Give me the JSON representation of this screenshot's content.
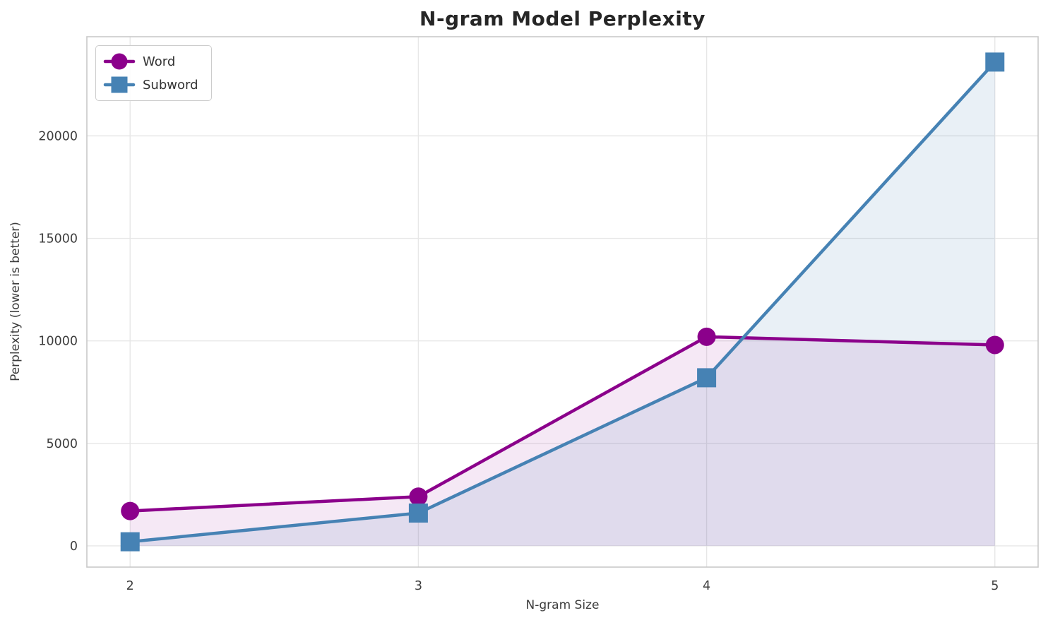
{
  "chart_data": {
    "type": "line",
    "title": "N-gram Model Perplexity",
    "xlabel": "N-gram Size",
    "ylabel": "Perplexity (lower is better)",
    "x": [
      2,
      3,
      4,
      5
    ],
    "series": [
      {
        "name": "Word",
        "marker": "circle",
        "color": "#8B008B",
        "fill_color": "rgba(139, 0, 139, 0.09)",
        "values": [
          1700,
          2400,
          10200,
          9800
        ]
      },
      {
        "name": "Subword",
        "marker": "square",
        "color": "#4682B4",
        "fill_color": "rgba(70, 130, 180, 0.12)",
        "values": [
          200,
          1600,
          8200,
          23600
        ]
      }
    ],
    "xticks": [
      2,
      3,
      4,
      5
    ],
    "yticks": [
      0,
      5000,
      10000,
      15000,
      20000
    ],
    "xlim": [
      1.85,
      5.15
    ],
    "ylim": [
      -1036,
      24836
    ],
    "fill_to_zero": true,
    "grid": true,
    "grid_color": "#e7e7e7",
    "spine_color": "#c9c9c9",
    "tick_color": "#3d3d3d",
    "legend_position": "upper left"
  }
}
